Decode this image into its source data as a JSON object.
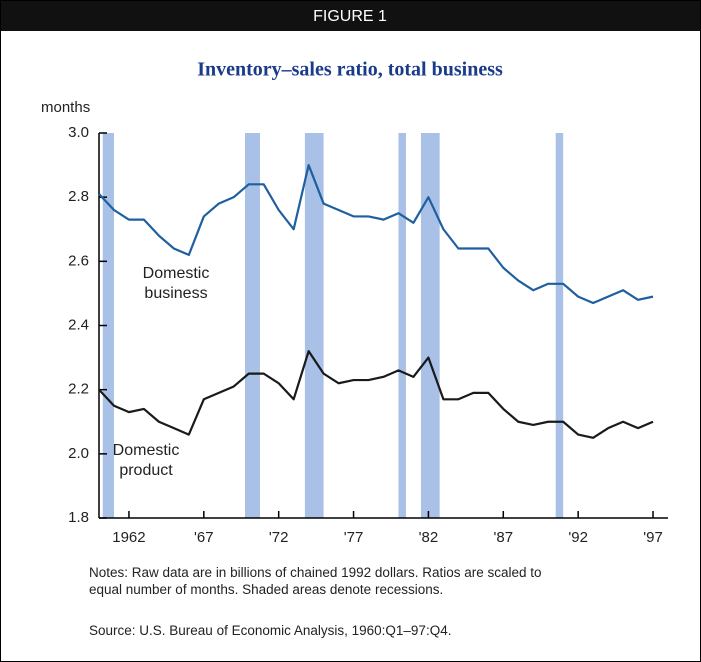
{
  "chart_data": {
    "type": "line",
    "header": "FIGURE 1",
    "title": "Inventory–sales ratio, total business",
    "y_label": "months",
    "x": [
      1960,
      1961,
      1962,
      1963,
      1964,
      1965,
      1966,
      1967,
      1968,
      1969,
      1970,
      1971,
      1972,
      1973,
      1974,
      1975,
      1976,
      1977,
      1978,
      1979,
      1980,
      1981,
      1982,
      1983,
      1984,
      1985,
      1986,
      1987,
      1988,
      1989,
      1990,
      1991,
      1992,
      1993,
      1994,
      1995,
      1996,
      1997
    ],
    "series": [
      {
        "name": "Domestic business",
        "color": "#1f5f9f",
        "values": [
          2.81,
          2.76,
          2.73,
          2.73,
          2.68,
          2.64,
          2.62,
          2.74,
          2.78,
          2.8,
          2.84,
          2.84,
          2.76,
          2.7,
          2.9,
          2.78,
          2.76,
          2.74,
          2.74,
          2.73,
          2.75,
          2.72,
          2.8,
          2.7,
          2.64,
          2.64,
          2.64,
          2.58,
          2.54,
          2.51,
          2.53,
          2.53,
          2.49,
          2.47,
          2.49,
          2.51,
          2.48,
          2.49
        ]
      },
      {
        "name": "Domestic product",
        "color": "#1a1a1a",
        "values": [
          2.2,
          2.15,
          2.13,
          2.14,
          2.1,
          2.08,
          2.06,
          2.17,
          2.19,
          2.21,
          2.25,
          2.25,
          2.22,
          2.17,
          2.32,
          2.25,
          2.22,
          2.23,
          2.23,
          2.24,
          2.26,
          2.24,
          2.3,
          2.17,
          2.17,
          2.19,
          2.19,
          2.14,
          2.1,
          2.09,
          2.1,
          2.1,
          2.06,
          2.05,
          2.08,
          2.1,
          2.08,
          2.1
        ]
      }
    ],
    "recessions": [
      [
        1960.25,
        1961.0
      ],
      [
        1969.75,
        1970.75
      ],
      [
        1973.75,
        1975.0
      ],
      [
        1980.0,
        1980.5
      ],
      [
        1981.5,
        1982.75
      ],
      [
        1990.5,
        1991.0
      ]
    ],
    "recession_color": "#a9c1e6",
    "xlim": [
      1960,
      1998
    ],
    "xticks": [
      1962,
      {
        "value": 1967,
        "label": "'67"
      },
      {
        "value": 1972,
        "label": "'72"
      },
      {
        "value": 1977,
        "label": "'77"
      },
      {
        "value": 1982,
        "label": "'82"
      },
      {
        "value": 1987,
        "label": "'87"
      },
      {
        "value": 1992,
        "label": "'92"
      },
      {
        "value": 1997,
        "label": "'97"
      }
    ],
    "ylim": [
      1.8,
      3.0
    ],
    "yticks": [
      1.8,
      {
        "value": 2,
        "label": "2.0"
      },
      2.2,
      2.4,
      2.6,
      2.8,
      {
        "value": 3,
        "label": "3.0"
      }
    ],
    "notes": "Notes: Raw data are in billions of chained 1992 dollars. Ratios are scaled to equal number of months. Shaded areas denote recessions.",
    "source": "Source: U.S. Bureau of Economic Analysis, 1960:Q1–97:Q4."
  }
}
